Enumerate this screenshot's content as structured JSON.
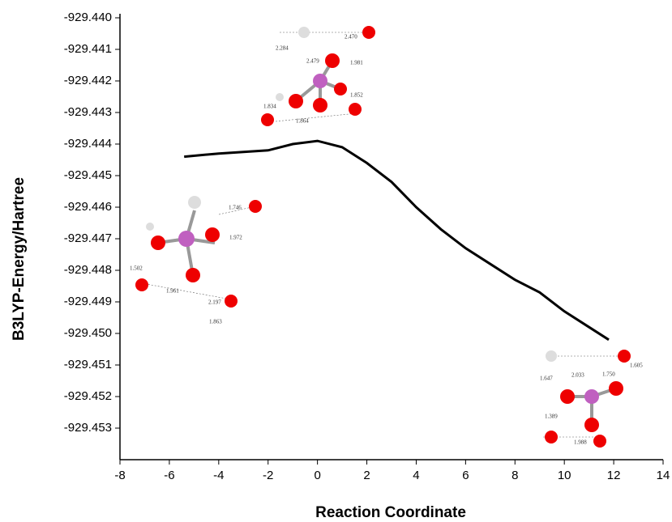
{
  "chart_data": {
    "type": "line",
    "x_label": "Reaction Coordinate",
    "y_label": "B3LYP-Energy/Hartree",
    "xlim": [
      -8,
      14
    ],
    "xticks": [
      -8,
      -6,
      -4,
      -2,
      0,
      2,
      4,
      6,
      8,
      10,
      12,
      14
    ],
    "ylim": [
      -929.454,
      -929.44
    ],
    "yticks": [
      {
        "value": -929.44,
        "label": "-929.440"
      },
      -929.441,
      -929.442,
      -929.443,
      -929.444,
      -929.445,
      -929.446,
      -929.447,
      -929.448,
      -929.449,
      {
        "value": -929.45,
        "label": "-929.450"
      },
      -929.451,
      -929.452,
      -929.453
    ],
    "series": [
      {
        "color": "#000000",
        "x": [
          -5.4,
          -4,
          -2,
          -1,
          0,
          1,
          2,
          3,
          4,
          5,
          6,
          7,
          8,
          9,
          10,
          11,
          11.8
        ],
        "values": [
          -929.4444,
          -929.4443,
          -929.4442,
          -929.444,
          -929.4439,
          -929.4441,
          -929.4446,
          -929.4452,
          -929.446,
          -929.4467,
          -929.4473,
          -929.4478,
          -929.4483,
          -929.4487,
          -929.4493,
          -929.4498,
          -929.4502
        ]
      }
    ],
    "annotations": [
      "2.284",
      "2.479",
      "2.470",
      "1.981",
      "1.852",
      "1.834",
      "1.864",
      "1.746",
      "1.972",
      "1.502",
      "1.961",
      "2.197",
      "1.863",
      "1.647",
      "2.033",
      "1.750",
      "1.605",
      "1.389",
      "1.988"
    ]
  }
}
